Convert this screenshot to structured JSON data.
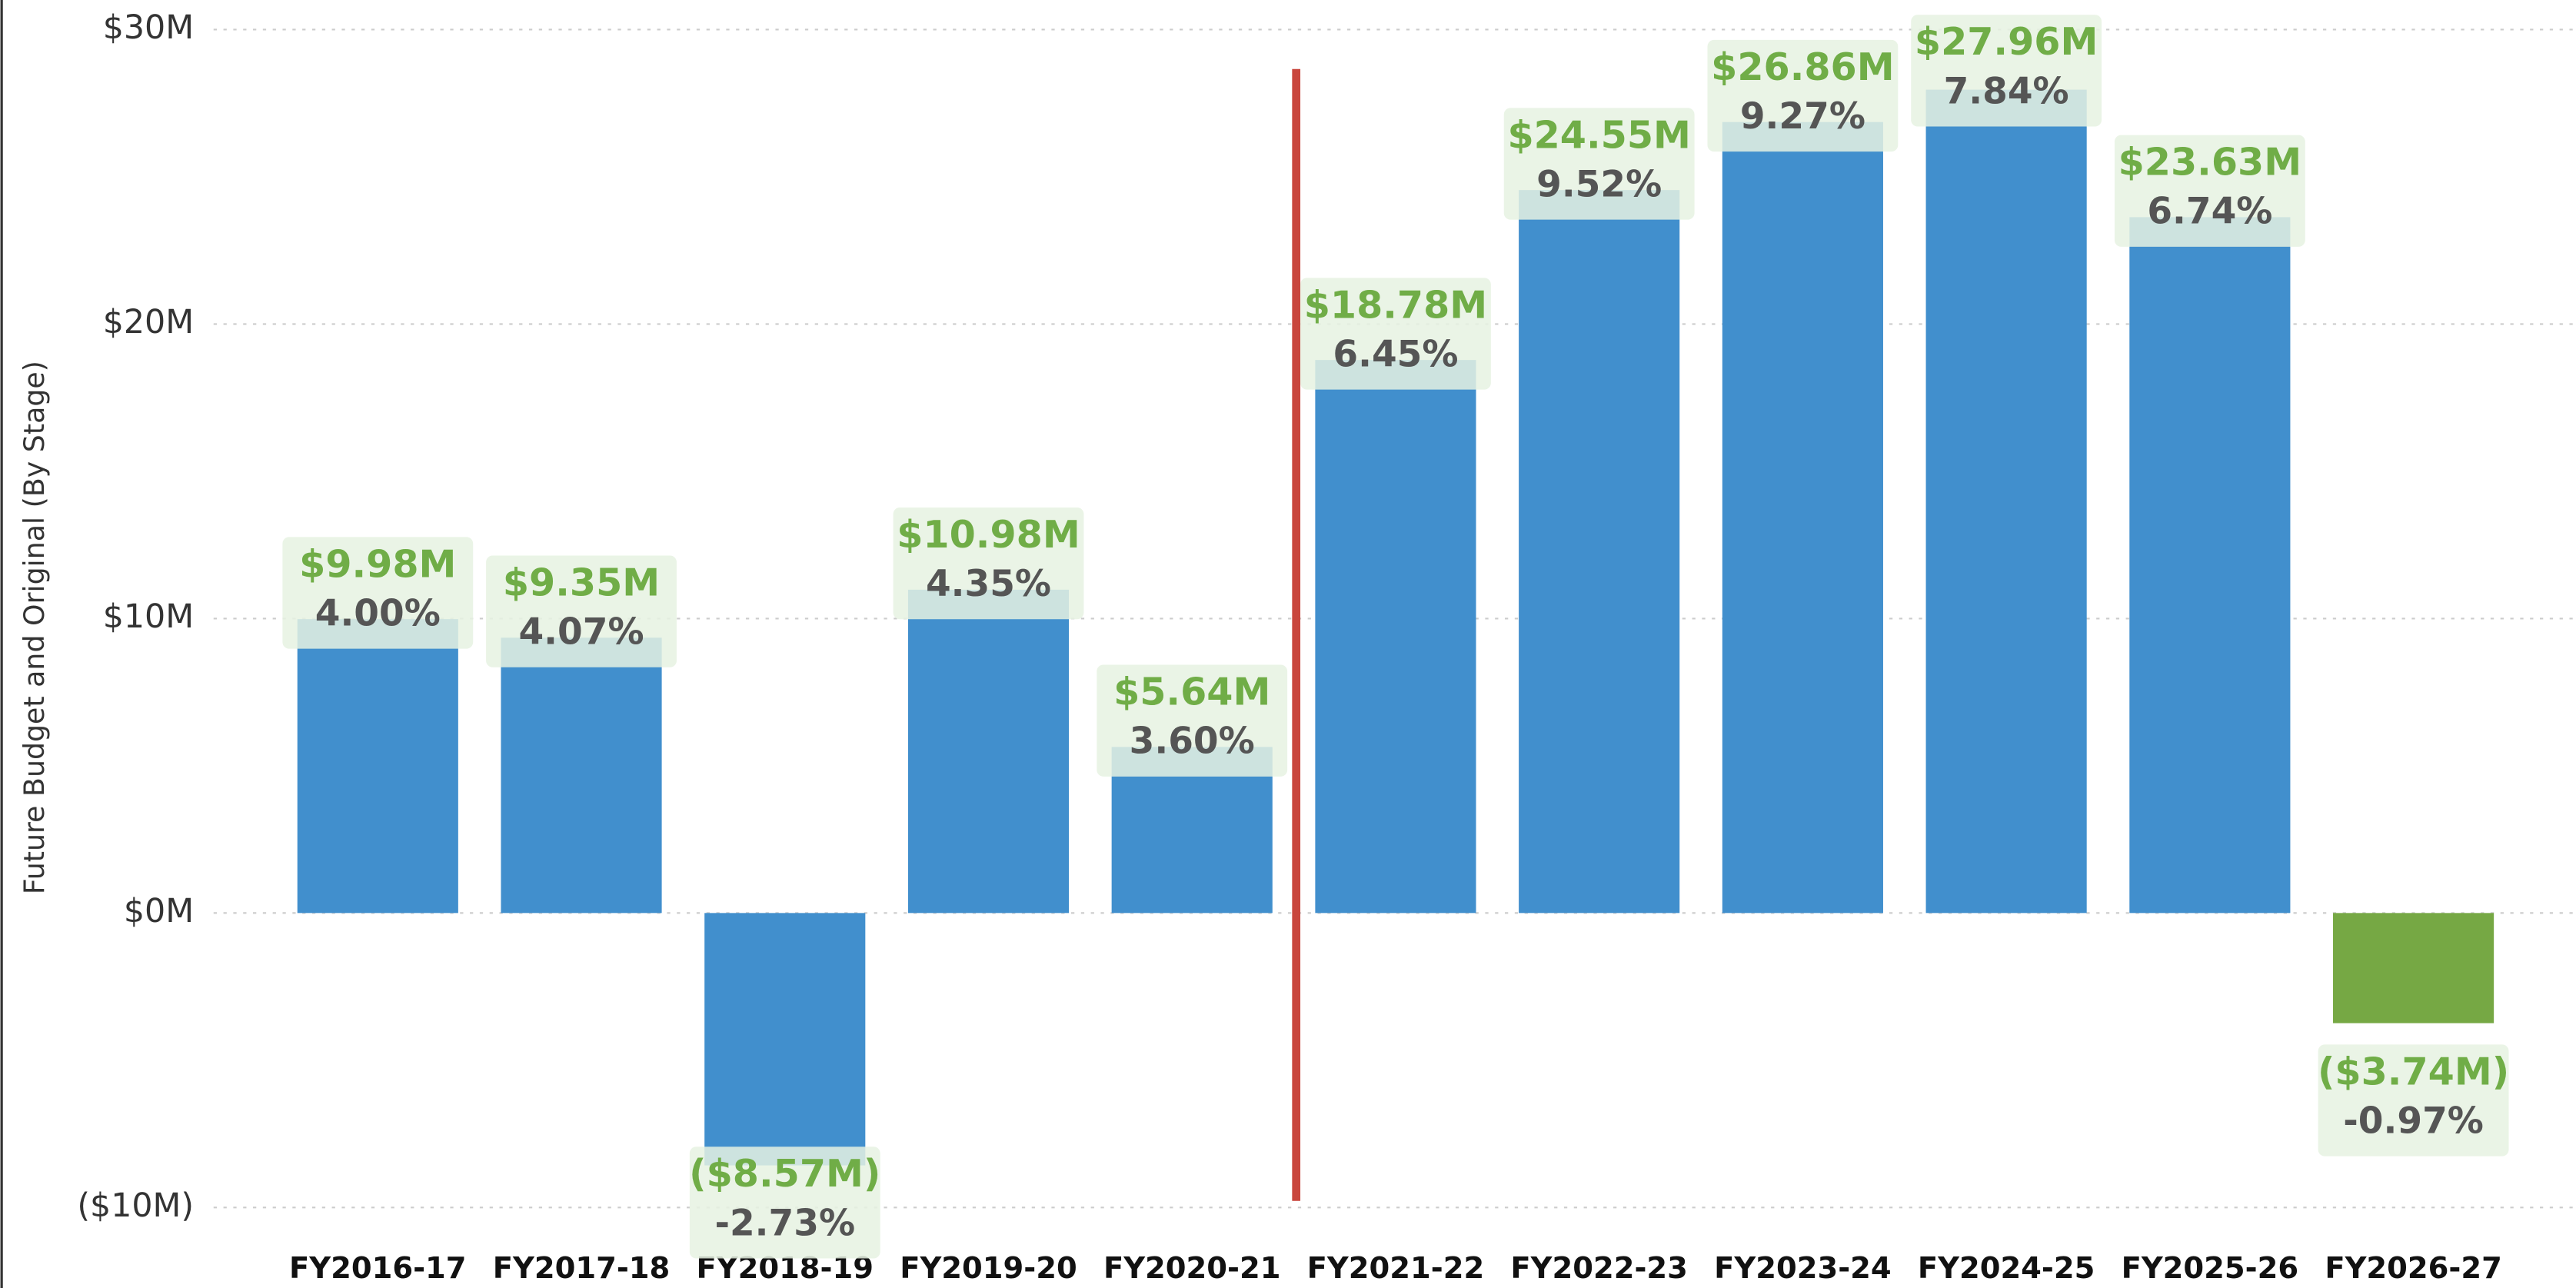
{
  "chart_data": {
    "type": "bar",
    "y_label": "Future Budget and Original (By Stage)",
    "categories": [
      "FY2016-17",
      "FY2017-18",
      "FY2018-19",
      "FY2019-20",
      "FY2020-21",
      "FY2021-22",
      "FY2022-23",
      "FY2023-24",
      "FY2024-25",
      "FY2025-26",
      "FY2026-27"
    ],
    "values": [
      9.98,
      9.35,
      -8.57,
      10.98,
      5.64,
      18.78,
      24.55,
      26.86,
      27.96,
      23.63,
      -3.74
    ],
    "value_labels": [
      "$9.98M",
      "$9.35M",
      "($8.57M)",
      "$10.98M",
      "$5.64M",
      "$18.78M",
      "$24.55M",
      "$26.86M",
      "$27.96M",
      "$23.63M",
      "($3.74M)"
    ],
    "growth_labels": [
      "4.00%",
      "4.07%",
      "-2.73%",
      "4.35%",
      "3.60%",
      "6.45%",
      "9.52%",
      "9.27%",
      "7.84%",
      "6.74%",
      "-0.97%"
    ],
    "colors": [
      "#418fcd",
      "#418fcd",
      "#418fcd",
      "#418fcd",
      "#418fcd",
      "#418fcd",
      "#418fcd",
      "#418fcd",
      "#418fcd",
      "#418fcd",
      "#76a844"
    ],
    "ylim": [
      -10,
      30
    ],
    "yticks": [
      {
        "value": -10,
        "label": "($10M)"
      },
      {
        "value": 0,
        "label": "$0M"
      },
      {
        "value": 10,
        "label": "$10M"
      },
      {
        "value": 20,
        "label": "$20M"
      },
      {
        "value": 30,
        "label": "$30M"
      }
    ],
    "grid": true
  }
}
